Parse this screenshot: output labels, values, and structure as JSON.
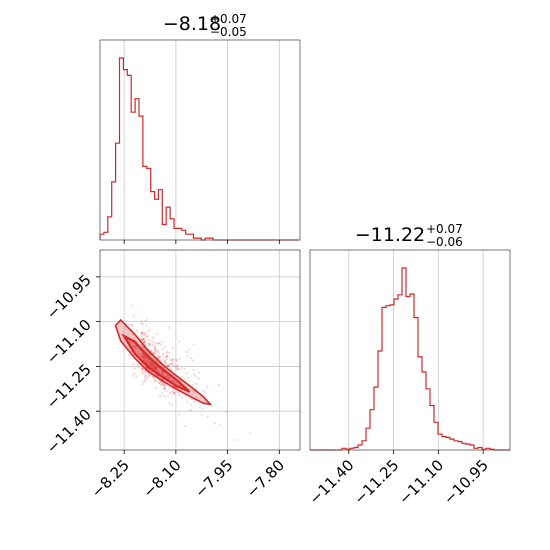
{
  "colors": {
    "series": "#d62728"
  },
  "chart_data": [
    {
      "type": "histogram",
      "panel": "marginal-param-1",
      "title_main": "−8.18",
      "title_sup": "+0.07",
      "title_sub": "−0.05",
      "xlim": [
        -8.32,
        -7.74
      ],
      "x_ticks": [
        -8.25,
        -8.1,
        -7.95,
        -7.8
      ],
      "x_tick_labels": [
        "−8.25",
        "−8.10",
        "−7.95",
        "−7.80"
      ],
      "grid": true,
      "bin_edges_start": -8.32,
      "bin_width": 0.0113,
      "counts": [
        3,
        4,
        12,
        30,
        50,
        94,
        88,
        85,
        66,
        73,
        64,
        38,
        37,
        25,
        21,
        26,
        8,
        17,
        11,
        6,
        6,
        5,
        3,
        3,
        1,
        1,
        0,
        1,
        1,
        0,
        0,
        0,
        0,
        0,
        0,
        0,
        0,
        0,
        0,
        0,
        0,
        0,
        0,
        0,
        0,
        0,
        0,
        0,
        0,
        0,
        0
      ]
    },
    {
      "type": "scatter+contour",
      "panel": "joint",
      "xlim": [
        -8.32,
        -7.74
      ],
      "ylim": [
        -11.53,
        -10.86
      ],
      "x_ticks": [
        -8.25,
        -8.1,
        -7.95,
        -7.8
      ],
      "x_tick_labels": [
        "−8.25",
        "−8.10",
        "−7.95",
        "−7.80"
      ],
      "y_ticks": [
        -10.95,
        -11.1,
        -11.25,
        -11.4
      ],
      "y_tick_labels": [
        "−10.95",
        "−11.10",
        "−11.25",
        "−11.40"
      ],
      "grid": true,
      "ridge": {
        "x": [
          -8.27,
          -8.2,
          -8.12,
          -8.04,
          -7.98
        ],
        "y": [
          -11.12,
          -11.22,
          -11.29,
          -11.35,
          -11.39
        ]
      },
      "contour_levels": [
        0.39,
        0.86
      ]
    },
    {
      "type": "histogram",
      "panel": "marginal-param-2",
      "title_main": "−11.22",
      "title_sup": "+0.07",
      "title_sub": "−0.06",
      "xlim": [
        -11.53,
        -10.86
      ],
      "x_ticks": [
        -11.4,
        -11.25,
        -11.1,
        -10.95
      ],
      "x_tick_labels": [
        "−11.40",
        "−11.25",
        "−11.10",
        "−10.95"
      ],
      "grid": true,
      "bin_edges_start": -11.53,
      "bin_width": 0.0134,
      "counts": [
        0,
        0,
        0,
        0,
        0,
        0,
        0,
        0,
        2,
        1,
        2,
        3,
        6,
        11,
        26,
        48,
        75,
        118,
        170,
        172,
        173,
        180,
        185,
        217,
        183,
        186,
        158,
        111,
        93,
        73,
        53,
        33,
        19,
        16,
        15,
        13,
        11,
        10,
        8,
        7,
        6,
        2,
        3,
        1,
        2,
        1,
        0,
        0,
        0,
        0
      ]
    }
  ]
}
